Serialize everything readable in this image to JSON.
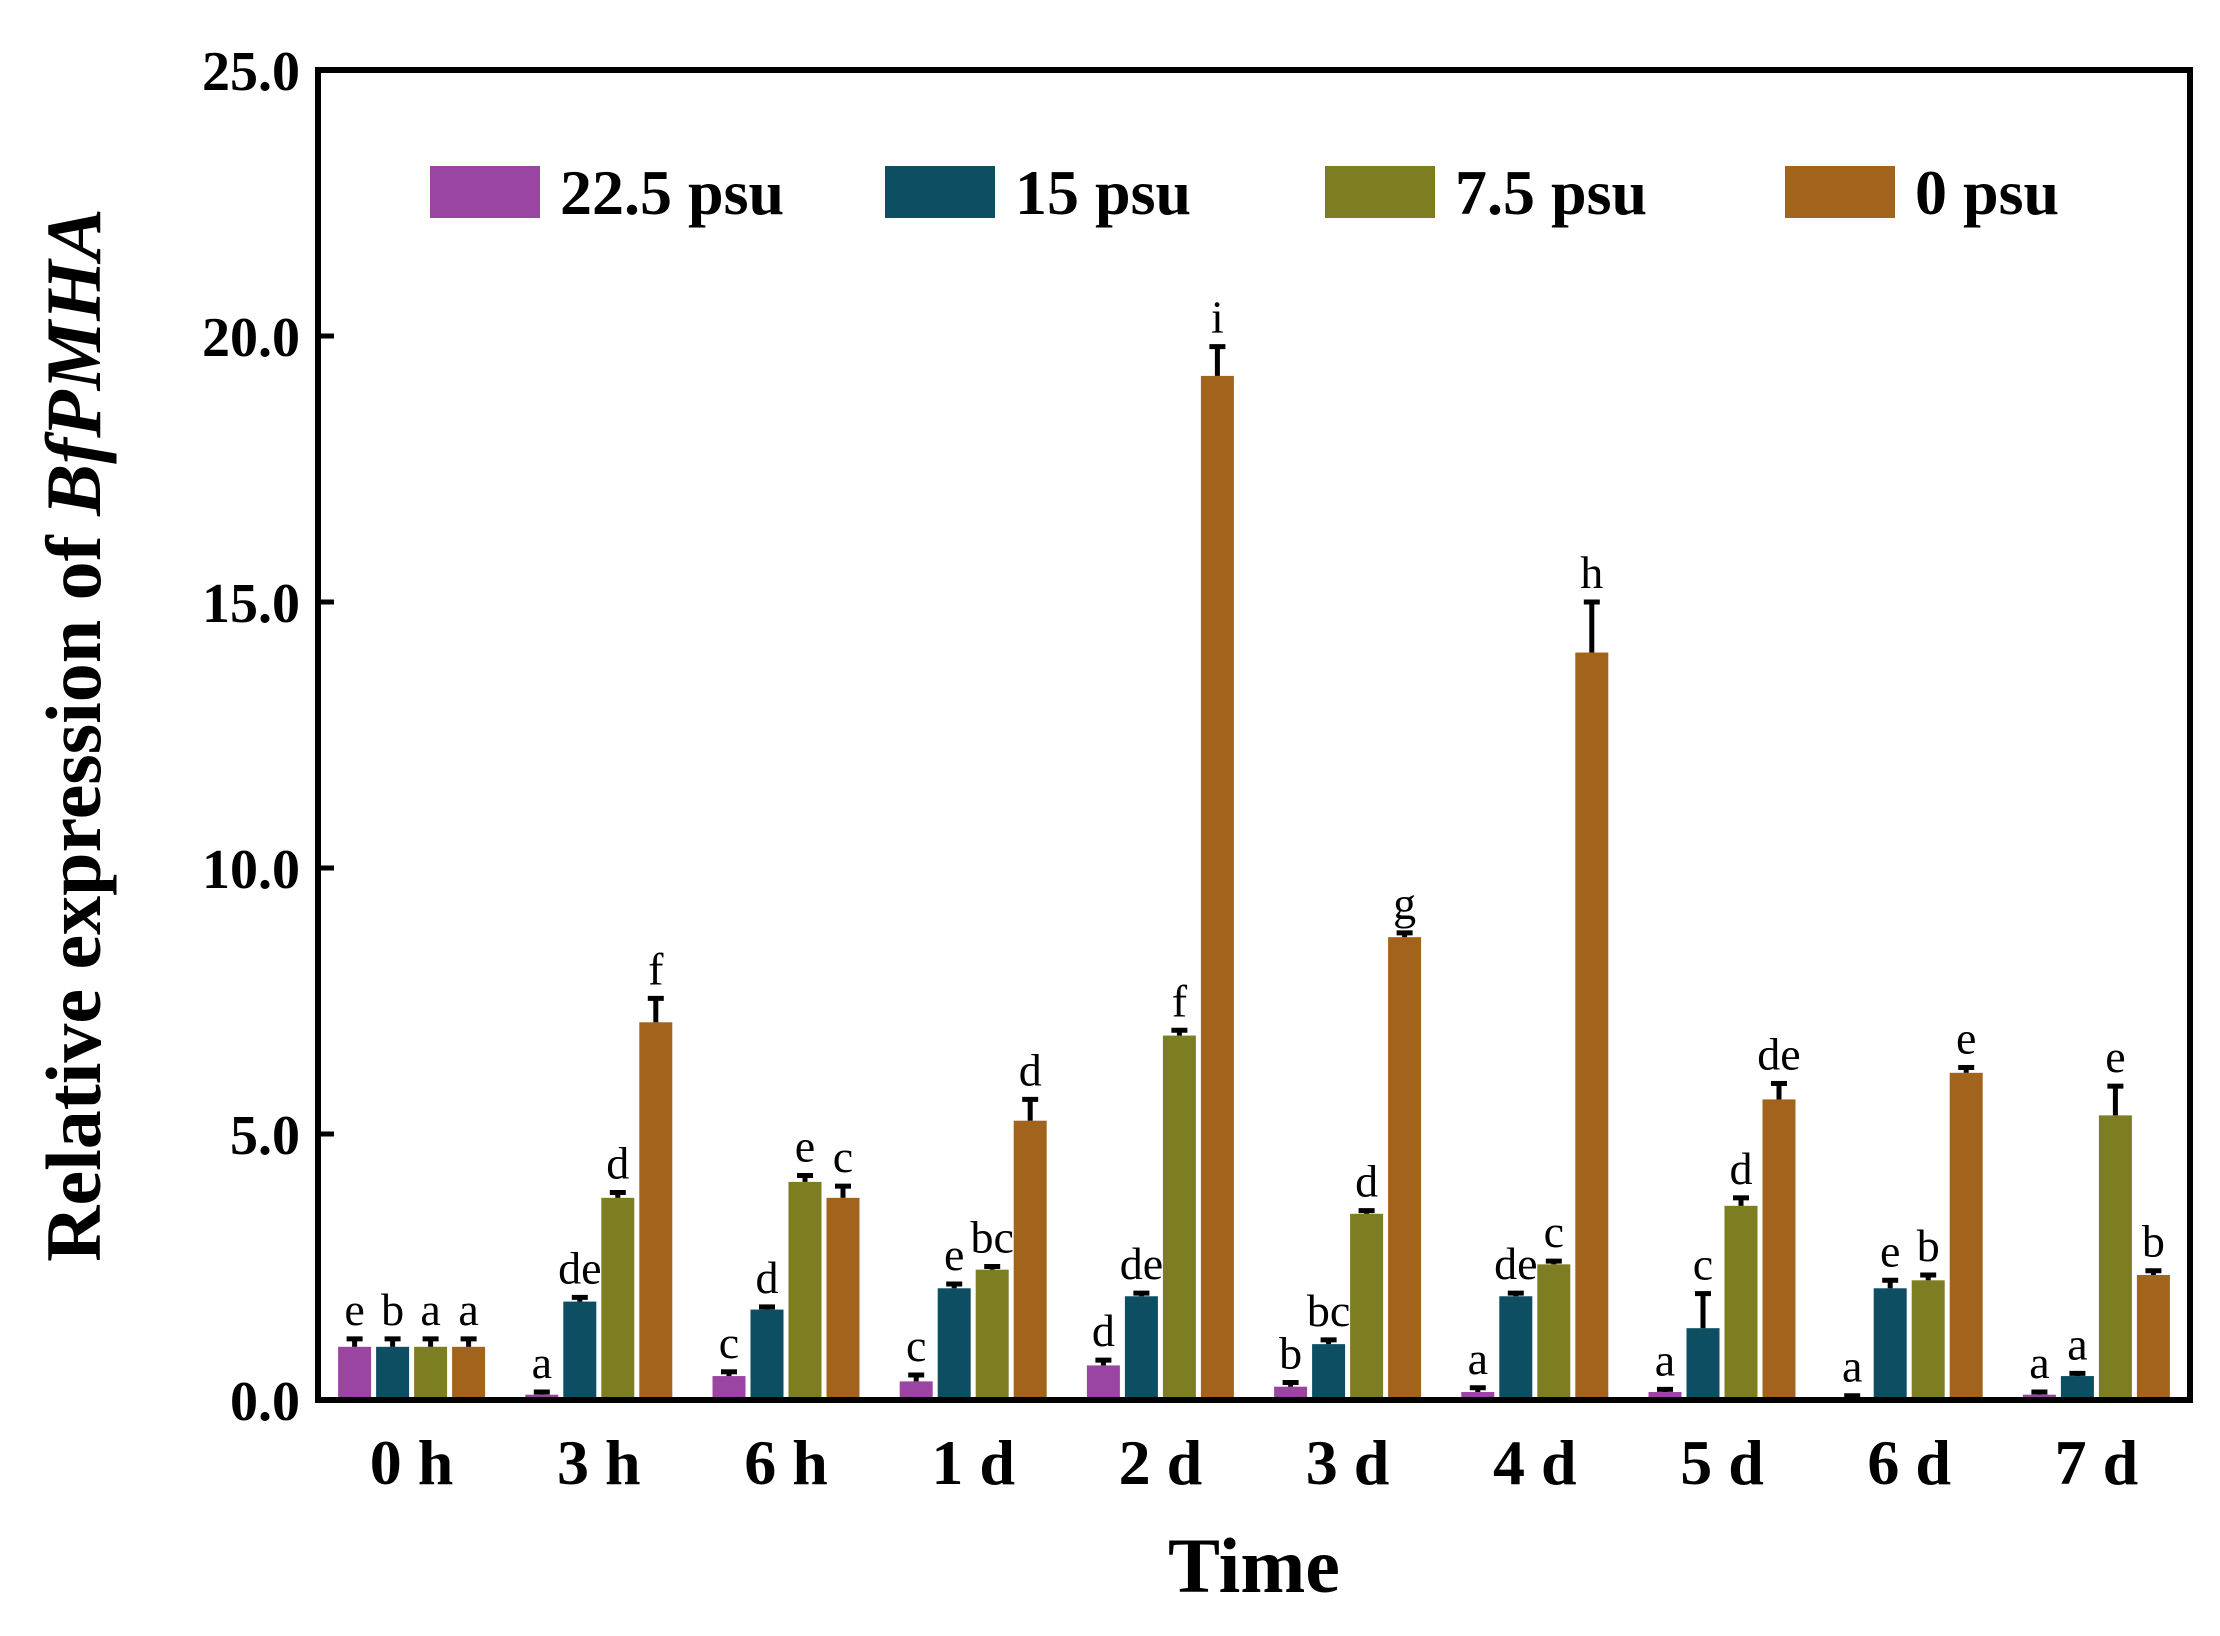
{
  "chart_data": {
    "type": "bar",
    "title": "",
    "xlabel": "Time",
    "ylabel_prefix": "Relative expression of ",
    "ylabel_gene": "BfPMHA",
    "ylim": [
      0,
      25
    ],
    "yticks": [
      0,
      5,
      10,
      15,
      20,
      25
    ],
    "ytick_labels": [
      "0.0",
      "5.0",
      "10.0",
      "15.0",
      "20.0",
      "25.0"
    ],
    "legend_position": "top",
    "categories": [
      "0 h",
      "3 h",
      "6 h",
      "1 d",
      "2 d",
      "3 d",
      "4 d",
      "5 d",
      "6 d",
      "7 d"
    ],
    "series": [
      {
        "name": "22.5 psu",
        "color": "#9b45a3",
        "values": [
          1.0,
          0.1,
          0.45,
          0.35,
          0.65,
          0.25,
          0.15,
          0.15,
          0.05,
          0.1
        ],
        "errors": [
          0.15,
          0.05,
          0.08,
          0.12,
          0.1,
          0.08,
          0.08,
          0.05,
          0.03,
          0.05
        ],
        "letters": [
          "e",
          "a",
          "c",
          "c",
          "d",
          "b",
          "a",
          "a",
          "a",
          "a"
        ]
      },
      {
        "name": "15 psu",
        "color": "#0d4e63",
        "values": [
          1.0,
          1.85,
          1.7,
          2.1,
          1.95,
          1.05,
          1.95,
          1.35,
          2.1,
          0.45
        ],
        "errors": [
          0.15,
          0.08,
          0.05,
          0.08,
          0.06,
          0.08,
          0.06,
          0.65,
          0.15,
          0.05
        ],
        "letters": [
          "b",
          "de",
          "d",
          "e",
          "de",
          "bc",
          "de",
          "c",
          "e",
          "a"
        ]
      },
      {
        "name": "7.5 psu",
        "color": "#7d7e22",
        "values": [
          1.0,
          3.8,
          4.1,
          2.45,
          6.85,
          3.5,
          2.55,
          3.65,
          2.25,
          5.35
        ],
        "errors": [
          0.15,
          0.1,
          0.12,
          0.06,
          0.1,
          0.06,
          0.06,
          0.15,
          0.1,
          0.55
        ],
        "letters": [
          "a",
          "d",
          "e",
          "bc",
          "f",
          "d",
          "c",
          "d",
          "b",
          "e"
        ]
      },
      {
        "name": "0 psu",
        "color": "#a2631c",
        "values": [
          1.0,
          7.1,
          3.8,
          5.25,
          19.25,
          8.7,
          14.05,
          5.65,
          6.15,
          2.35
        ],
        "errors": [
          0.15,
          0.45,
          0.22,
          0.4,
          0.55,
          0.08,
          0.95,
          0.3,
          0.1,
          0.08
        ],
        "letters": [
          "a",
          "f",
          "c",
          "d",
          "i",
          "g",
          "h",
          "de",
          "e",
          "b"
        ]
      }
    ]
  }
}
